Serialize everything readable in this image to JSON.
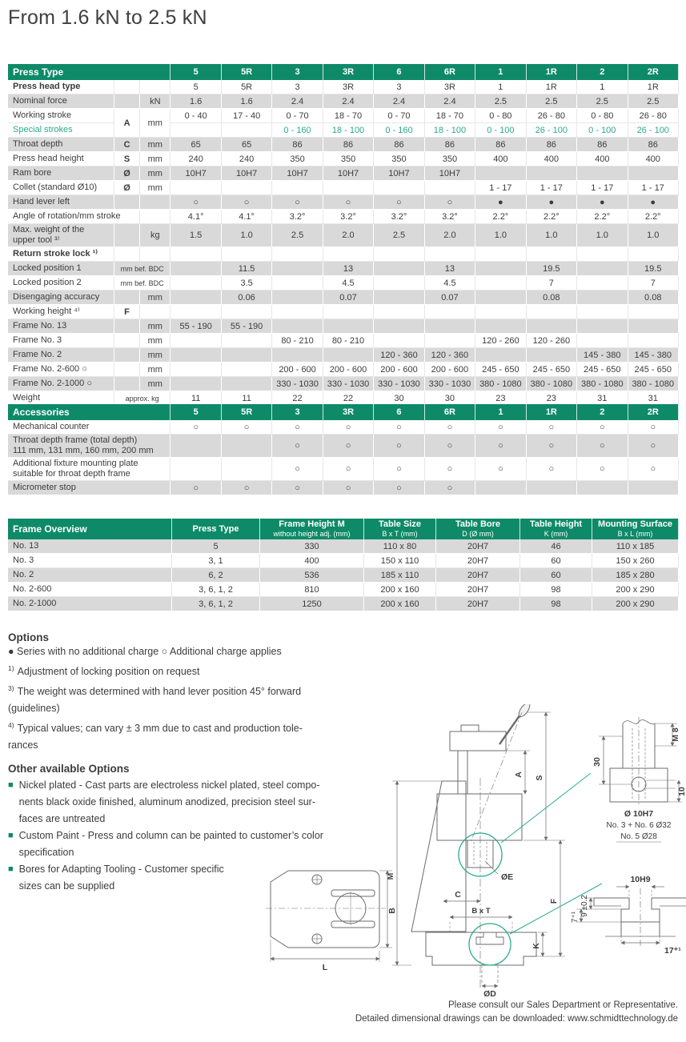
{
  "page": {
    "title": "From 1.6 kN to 2.5 kN"
  },
  "colors": {
    "header_green": "#0e8a68",
    "accent_green": "#2baa8c",
    "stripe_grey": "#d9d9d9"
  },
  "press_table": {
    "header_label": "Press Type",
    "columns": [
      "5",
      "5R",
      "3",
      "3R",
      "6",
      "6R",
      "1",
      "1R",
      "2",
      "2R"
    ],
    "rows": [
      {
        "label": "Press head type",
        "bold": true,
        "letter": "",
        "unit": "",
        "values": [
          "5",
          "5R",
          "3",
          "3R",
          "3",
          "3R",
          "1",
          "1R",
          "1",
          "1R"
        ],
        "shade": false
      },
      {
        "label": "Nominal force",
        "letter": "",
        "unit": "kN",
        "values": [
          "1.6",
          "1.6",
          "2.4",
          "2.4",
          "2.4",
          "2.4",
          "2.5",
          "2.5",
          "2.5",
          "2.5"
        ],
        "shade": true
      },
      {
        "label": "Working stroke",
        "letter": "A",
        "unit": "mm",
        "rowspan": 2,
        "values": [
          "0 - 40",
          "17 - 40",
          "0 - 70",
          "18 - 70",
          "0 - 70",
          "18 - 70",
          "0 - 80",
          "26 - 80",
          "0 - 80",
          "26 - 80"
        ],
        "shade": false
      },
      {
        "label": "Special strokes",
        "green": true,
        "skip": true,
        "values": [
          "",
          "",
          "0 - 160",
          "18 - 100",
          "0 - 160",
          "18 - 100",
          "0 - 100",
          "26 - 100",
          "0 - 100",
          "26 - 100"
        ],
        "shade": false
      },
      {
        "label": "Throat depth",
        "letter": "C",
        "unit": "mm",
        "values": [
          "65",
          "65",
          "86",
          "86",
          "86",
          "86",
          "86",
          "86",
          "86",
          "86"
        ],
        "shade": true
      },
      {
        "label": "Press head height",
        "letter": "S",
        "unit": "mm",
        "values": [
          "240",
          "240",
          "350",
          "350",
          "350",
          "350",
          "400",
          "400",
          "400",
          "400"
        ],
        "shade": false
      },
      {
        "label": "Ram bore",
        "letter": "Ø",
        "unit": "mm",
        "values": [
          "10H7",
          "10H7",
          "10H7",
          "10H7",
          "10H7",
          "10H7",
          "",
          "",
          "",
          ""
        ],
        "shade": true
      },
      {
        "label": "Collet (standard Ø10)",
        "letter": "Ø",
        "unit": "mm",
        "values": [
          "",
          "",
          "",
          "",
          "",
          "",
          "1 - 17",
          "1 - 17",
          "1 - 17",
          "1 - 17"
        ],
        "shade": false
      },
      {
        "label": "Hand lever left",
        "letter": "",
        "unit": "",
        "values": [
          "○",
          "○",
          "○",
          "○",
          "○",
          "○",
          "●",
          "●",
          "●",
          "●"
        ],
        "shade": true
      },
      {
        "label": "Angle of rotation/mm stroke",
        "labelSpan": 2,
        "unit": "",
        "values": [
          "4.1°",
          "4.1°",
          "3.2°",
          "3.2°",
          "3.2°",
          "3.2°",
          "2.2°",
          "2.2°",
          "2.2°",
          "2.2°"
        ],
        "shade": false
      },
      {
        "label": "Max. weight of the\nupper tool ³⁾",
        "letter": "",
        "unit": "kg",
        "values": [
          "1.5",
          "1.0",
          "2.5",
          "2.0",
          "2.5",
          "2.0",
          "1.0",
          "1.0",
          "1.0",
          "1.0"
        ],
        "shade": true
      },
      {
        "label": "Return stroke lock ¹⁾",
        "bold": true,
        "letter": "",
        "unit": "",
        "values": [
          "",
          "",
          "",
          "",
          "",
          "",
          "",
          "",
          "",
          ""
        ],
        "shade": false
      },
      {
        "label": "Locked position 1",
        "unitSpan": "mm bef. BDC",
        "values": [
          "",
          "11.5",
          "",
          "13",
          "",
          "13",
          "",
          "19.5",
          "",
          "19.5"
        ],
        "shade": true
      },
      {
        "label": "Locked position 2",
        "unitSpan": "mm bef. BDC",
        "values": [
          "",
          "3.5",
          "",
          "4.5",
          "",
          "4.5",
          "",
          "7",
          "",
          "7"
        ],
        "shade": false
      },
      {
        "label": "Disengaging accuracy",
        "letter": "",
        "unit": "mm",
        "values": [
          "",
          "0.06",
          "",
          "0.07",
          "",
          "0.07",
          "",
          "0.08",
          "",
          "0.08"
        ],
        "shade": true
      },
      {
        "label": "Working height ⁴⁾",
        "letter": "F",
        "unit": "",
        "values": [
          "",
          "",
          "",
          "",
          "",
          "",
          "",
          "",
          "",
          ""
        ],
        "shade": false
      },
      {
        "label": "Frame No. 13",
        "letter": "",
        "unit": "mm",
        "values": [
          "55 - 190",
          "55 - 190",
          "",
          "",
          "",
          "",
          "",
          "",
          "",
          ""
        ],
        "shade": true
      },
      {
        "label": "Frame No. 3",
        "letter": "",
        "unit": "mm",
        "values": [
          "",
          "",
          "80 - 210",
          "80 - 210",
          "",
          "",
          "120 - 260",
          "120 - 260",
          "",
          ""
        ],
        "shade": false
      },
      {
        "label": "Frame No. 2",
        "letter": "",
        "unit": "mm",
        "values": [
          "",
          "",
          "",
          "",
          "120 - 360",
          "120 - 360",
          "",
          "",
          "145 - 380",
          "145 - 380"
        ],
        "shade": true
      },
      {
        "label": "Frame No. 2-600 ○",
        "letter": "",
        "unit": "mm",
        "values": [
          "",
          "",
          "200 - 600",
          "200 - 600",
          "200 - 600",
          "200 - 600",
          "245 - 650",
          "245 - 650",
          "245 - 650",
          "245 - 650"
        ],
        "shade": false
      },
      {
        "label": "Frame No. 2-1000 ○",
        "letter": "",
        "unit": "mm",
        "values": [
          "",
          "",
          "330 - 1030",
          "330 - 1030",
          "330 - 1030",
          "330 - 1030",
          "380 - 1080",
          "380 - 1080",
          "380 - 1080",
          "380 - 1080"
        ],
        "shade": true
      },
      {
        "label": "Weight",
        "unitSpan": "approx. kg",
        "values": [
          "11",
          "11",
          "22",
          "22",
          "30",
          "30",
          "23",
          "23",
          "31",
          "31"
        ],
        "shade": false
      }
    ]
  },
  "accessories_table": {
    "header_label": "Accessories",
    "columns": [
      "5",
      "5R",
      "3",
      "3R",
      "6",
      "6R",
      "1",
      "1R",
      "2",
      "2R"
    ],
    "rows": [
      {
        "label": "Mechanical counter",
        "values": [
          "○",
          "○",
          "○",
          "○",
          "○",
          "○",
          "○",
          "○",
          "○",
          "○"
        ],
        "shade": false
      },
      {
        "label": "Throat depth frame (total depth)\n111 mm, 131 mm, 160 mm, 200 mm",
        "values": [
          "",
          "",
          "○",
          "○",
          "○",
          "○",
          "○",
          "○",
          "○",
          "○"
        ],
        "shade": true
      },
      {
        "label": "Additional fixture mounting plate\nsuitable for throat depth frame",
        "values": [
          "",
          "",
          "○",
          "○",
          "○",
          "○",
          "○",
          "○",
          "○",
          "○"
        ],
        "shade": false
      },
      {
        "label": "Micrometer stop",
        "values": [
          "○",
          "○",
          "○",
          "○",
          "○",
          "○",
          "",
          "",
          "",
          ""
        ],
        "shade": true
      }
    ]
  },
  "frame_table": {
    "header_label": "Frame Overview",
    "columns": [
      {
        "line1": "Press Type",
        "line2": ""
      },
      {
        "line1": "Frame Height M",
        "line2": "without height adj. (mm)"
      },
      {
        "line1": "Table Size",
        "line2": "B x T (mm)"
      },
      {
        "line1": "Table Bore",
        "line2": "D (Ø mm)"
      },
      {
        "line1": "Table Height",
        "line2": "K (mm)"
      },
      {
        "line1": "Mounting Surface",
        "line2": "B x L (mm)"
      }
    ],
    "rows": [
      {
        "values": [
          "No. 13",
          "5",
          "330",
          "110 x 80",
          "20H7",
          "46",
          "110 x 185"
        ],
        "shade": true
      },
      {
        "values": [
          "No. 3",
          "3, 1",
          "400",
          "150 x 110",
          "20H7",
          "60",
          "150 x 260"
        ],
        "shade": false
      },
      {
        "values": [
          "No. 2",
          "6, 2",
          "536",
          "185 x 110",
          "20H7",
          "60",
          "185 x 280"
        ],
        "shade": true
      },
      {
        "values": [
          "No. 2-600",
          "3, 6, 1, 2",
          "810",
          "200 x 160",
          "20H7",
          "98",
          "200 x 290"
        ],
        "shade": false
      },
      {
        "values": [
          "No. 2-1000",
          "3, 6, 1, 2",
          "1250",
          "200 x 160",
          "20H7",
          "98",
          "200 x 290"
        ],
        "shade": true
      }
    ]
  },
  "options": {
    "heading": "Options",
    "legend": "● Series with no additional charge   ○ Additional charge applies",
    "notes": [
      {
        "sup": "1)",
        "text": "Adjustment of locking position on request"
      },
      {
        "sup": "3)",
        "text": "The weight was determined with hand lever position 45° forward\n(guidelines)"
      },
      {
        "sup": "4)",
        "text": "Typical values; can vary ± 3 mm due to cast and production tole-\nrances"
      }
    ]
  },
  "other_options": {
    "heading": "Other available Options",
    "items": [
      "Nickel plated - Cast parts are electroless nickel plated, steel compo-\nnents black oxide finished, aluminum anodized, precision steel sur-\nfaces are untreated",
      "Custom Paint - Press and column can be painted to customer’s color\nspecification",
      "Bores for Adapting Tooling - Customer specific\nsizes can be supplied"
    ]
  },
  "drawings": {
    "side_view": {
      "m": "M",
      "a": "A",
      "s": "S",
      "c": "C",
      "oe": "ØE",
      "bxt": "B x T",
      "f": "F",
      "k": "K",
      "od": "ØD"
    },
    "ram_detail": {
      "d30": "30",
      "m8": "M 8",
      "d10": "10",
      "bore": "Ø 10H7",
      "note1": "No. 3 + No. 6 Ø32",
      "note2": "No. 5 Ø28"
    },
    "slot_detail": {
      "top": "10H9",
      "left1": "9 ±0.2",
      "left2": "7⁺¹",
      "bottom": "17⁺¹"
    },
    "table_view": {
      "b": "B",
      "l": "L"
    }
  },
  "footer": {
    "line1": "Please consult our Sales Department or Representative.",
    "line2": "Detailed dimensional drawings can be downloaded: www.schmidttechnology.de"
  }
}
